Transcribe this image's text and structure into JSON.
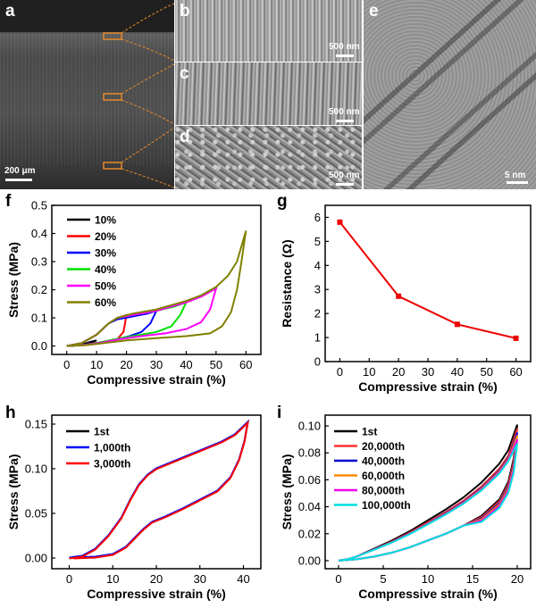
{
  "image_panels": {
    "a": {
      "label": "a",
      "scale": "200 μm"
    },
    "b": {
      "label": "b",
      "scale": "500 nm"
    },
    "c": {
      "label": "c",
      "scale": "500 nm"
    },
    "d": {
      "label": "d",
      "scale": "500 nm"
    },
    "e": {
      "label": "e",
      "scale": "5 nm"
    }
  },
  "chart_labels": {
    "f": "f",
    "g": "g",
    "h": "h",
    "i": "i"
  },
  "chart_data": [
    {
      "id": "f",
      "type": "line",
      "xlabel": "Compressive strain (%)",
      "ylabel": "Stress (MPa)",
      "xlim": [
        -5,
        65
      ],
      "ylim": [
        -0.03,
        0.5
      ],
      "xticks": [
        0,
        10,
        20,
        30,
        40,
        50,
        60
      ],
      "yticks": [
        0.0,
        0.1,
        0.2,
        0.3,
        0.4,
        0.5
      ],
      "ytick_labels": [
        "0.0",
        "0.1",
        "0.2",
        "0.3",
        "0.4",
        "0.5"
      ],
      "legend": "top-left",
      "series": [
        {
          "name": "10%",
          "color": "#000000",
          "load": [
            [
              0,
              0
            ],
            [
              3,
              0.002
            ],
            [
              6,
              0.008
            ],
            [
              8,
              0.015
            ],
            [
              10,
              0.02
            ]
          ],
          "unload": [
            [
              10,
              0.02
            ],
            [
              8,
              0.01
            ],
            [
              5,
              0.004
            ],
            [
              2,
              0.001
            ],
            [
              0,
              0
            ]
          ]
        },
        {
          "name": "20%",
          "color": "#ff0000",
          "load": [
            [
              0,
              0
            ],
            [
              5,
              0.01
            ],
            [
              10,
              0.04
            ],
            [
              14,
              0.08
            ],
            [
              17,
              0.1
            ],
            [
              20,
              0.11
            ]
          ],
          "unload": [
            [
              20,
              0.11
            ],
            [
              19,
              0.05
            ],
            [
              17,
              0.025
            ],
            [
              12,
              0.01
            ],
            [
              6,
              0.003
            ],
            [
              0,
              0
            ]
          ]
        },
        {
          "name": "30%",
          "color": "#0000ff",
          "load": [
            [
              0,
              0
            ],
            [
              5,
              0.01
            ],
            [
              10,
              0.04
            ],
            [
              14,
              0.08
            ],
            [
              17,
              0.095
            ],
            [
              22,
              0.105
            ],
            [
              27,
              0.115
            ],
            [
              30,
              0.125
            ]
          ],
          "unload": [
            [
              30,
              0.125
            ],
            [
              28,
              0.08
            ],
            [
              25,
              0.05
            ],
            [
              21,
              0.035
            ],
            [
              16,
              0.022
            ],
            [
              10,
              0.01
            ],
            [
              5,
              0.003
            ],
            [
              0,
              0
            ]
          ]
        },
        {
          "name": "40%",
          "color": "#00e000",
          "load": [
            [
              0,
              0
            ],
            [
              5,
              0.01
            ],
            [
              10,
              0.04
            ],
            [
              14,
              0.08
            ],
            [
              17,
              0.1
            ],
            [
              22,
              0.11
            ],
            [
              30,
              0.125
            ],
            [
              36,
              0.14
            ],
            [
              40,
              0.155
            ]
          ],
          "unload": [
            [
              40,
              0.155
            ],
            [
              38,
              0.11
            ],
            [
              35,
              0.07
            ],
            [
              30,
              0.05
            ],
            [
              25,
              0.04
            ],
            [
              18,
              0.028
            ],
            [
              12,
              0.015
            ],
            [
              6,
              0.004
            ],
            [
              0,
              0
            ]
          ]
        },
        {
          "name": "50%",
          "color": "#ff00ff",
          "load": [
            [
              0,
              0
            ],
            [
              5,
              0.01
            ],
            [
              10,
              0.04
            ],
            [
              14,
              0.08
            ],
            [
              17,
              0.1
            ],
            [
              22,
              0.11
            ],
            [
              30,
              0.125
            ],
            [
              40,
              0.155
            ],
            [
              45,
              0.175
            ],
            [
              50,
              0.205
            ]
          ],
          "unload": [
            [
              50,
              0.205
            ],
            [
              48,
              0.13
            ],
            [
              45,
              0.085
            ],
            [
              40,
              0.06
            ],
            [
              33,
              0.045
            ],
            [
              25,
              0.035
            ],
            [
              18,
              0.025
            ],
            [
              12,
              0.013
            ],
            [
              6,
              0.004
            ],
            [
              0,
              0
            ]
          ]
        },
        {
          "name": "60%",
          "color": "#808000",
          "load": [
            [
              0,
              0
            ],
            [
              5,
              0.01
            ],
            [
              10,
              0.04
            ],
            [
              14,
              0.08
            ],
            [
              17,
              0.1
            ],
            [
              22,
              0.115
            ],
            [
              30,
              0.13
            ],
            [
              40,
              0.16
            ],
            [
              45,
              0.18
            ],
            [
              50,
              0.21
            ],
            [
              54,
              0.25
            ],
            [
              57,
              0.3
            ],
            [
              60,
              0.41
            ]
          ],
          "unload": [
            [
              60,
              0.41
            ],
            [
              58.5,
              0.3
            ],
            [
              57,
              0.2
            ],
            [
              55,
              0.12
            ],
            [
              52,
              0.07
            ],
            [
              48,
              0.045
            ],
            [
              40,
              0.035
            ],
            [
              30,
              0.028
            ],
            [
              20,
              0.02
            ],
            [
              12,
              0.01
            ],
            [
              6,
              0.003
            ],
            [
              0,
              0
            ]
          ]
        }
      ]
    },
    {
      "id": "g",
      "type": "line",
      "xlabel": "Compressive strain (%)",
      "ylabel": "Resistance (Ω)",
      "xlim": [
        -5,
        65
      ],
      "ylim": [
        0,
        6.5
      ],
      "xticks": [
        0,
        10,
        20,
        30,
        40,
        50,
        60
      ],
      "yticks": [
        0,
        1,
        2,
        3,
        4,
        5,
        6
      ],
      "ytick_labels": [
        "0",
        "1",
        "2",
        "3",
        "4",
        "5",
        "6"
      ],
      "series": [
        {
          "color": "#ee0000",
          "x": [
            0,
            20,
            40,
            60
          ],
          "y": [
            5.8,
            2.72,
            1.55,
            0.97
          ]
        }
      ]
    },
    {
      "id": "h",
      "type": "line",
      "xlabel": "Compressive strain (%)",
      "ylabel": "Stress (MPa)",
      "xlim": [
        -4,
        44
      ],
      "ylim": [
        -0.012,
        0.16
      ],
      "xticks": [
        0,
        10,
        20,
        30,
        40
      ],
      "yticks": [
        0.0,
        0.05,
        0.1,
        0.15
      ],
      "ytick_labels": [
        "0.00",
        "0.05",
        "0.10",
        "0.15"
      ],
      "legend": "top-left",
      "series": [
        {
          "name": "1st",
          "color": "#000000",
          "offset": 0
        },
        {
          "name": "1,000th",
          "color": "#0000ff",
          "offset": 0.0005
        },
        {
          "name": "3,000th",
          "color": "#ff0000",
          "offset": -0.0005
        }
      ],
      "load": [
        [
          0,
          0
        ],
        [
          3,
          0.002
        ],
        [
          6,
          0.01
        ],
        [
          9,
          0.025
        ],
        [
          12,
          0.045
        ],
        [
          14,
          0.065
        ],
        [
          16,
          0.082
        ],
        [
          18,
          0.093
        ],
        [
          20,
          0.1
        ],
        [
          25,
          0.11
        ],
        [
          30,
          0.12
        ],
        [
          35,
          0.13
        ],
        [
          38,
          0.138
        ],
        [
          41,
          0.152
        ]
      ],
      "unload": [
        [
          41,
          0.152
        ],
        [
          40.2,
          0.13
        ],
        [
          39,
          0.11
        ],
        [
          37,
          0.09
        ],
        [
          34,
          0.075
        ],
        [
          30,
          0.065
        ],
        [
          26,
          0.055
        ],
        [
          22,
          0.046
        ],
        [
          19,
          0.04
        ],
        [
          17,
          0.032
        ],
        [
          15,
          0.022
        ],
        [
          13,
          0.012
        ],
        [
          10,
          0.004
        ],
        [
          6,
          0.001
        ],
        [
          1,
          0
        ]
      ]
    },
    {
      "id": "i",
      "type": "line",
      "xlabel": "Compressive strain (%)",
      "ylabel": "Stress (MPa)",
      "xlim": [
        -1.5,
        21.5
      ],
      "ylim": [
        -0.006,
        0.108
      ],
      "xticks": [
        0,
        5,
        10,
        15,
        20
      ],
      "yticks": [
        0.0,
        0.02,
        0.04,
        0.06,
        0.08,
        0.1
      ],
      "ytick_labels": [
        "0.00",
        "0.02",
        "0.04",
        "0.06",
        "0.08",
        "0.10"
      ],
      "legend": "top-left",
      "series": [
        {
          "name": "1st",
          "color": "#000000",
          "peak": 0.101,
          "upper": 1.0
        },
        {
          "name": "20,000th",
          "color": "#ff3333",
          "peak": 0.098,
          "upper": 0.95
        },
        {
          "name": "40,000th",
          "color": "#0000cc",
          "peak": 0.095,
          "upper": 0.93
        },
        {
          "name": "60,000th",
          "color": "#ff8800",
          "peak": 0.093,
          "upper": 0.92
        },
        {
          "name": "80,000th",
          "color": "#ee00ee",
          "peak": 0.09,
          "upper": 0.91
        },
        {
          "name": "100,000th",
          "color": "#00e0e0",
          "peak": 0.087,
          "upper": 0.9
        }
      ]
    }
  ]
}
